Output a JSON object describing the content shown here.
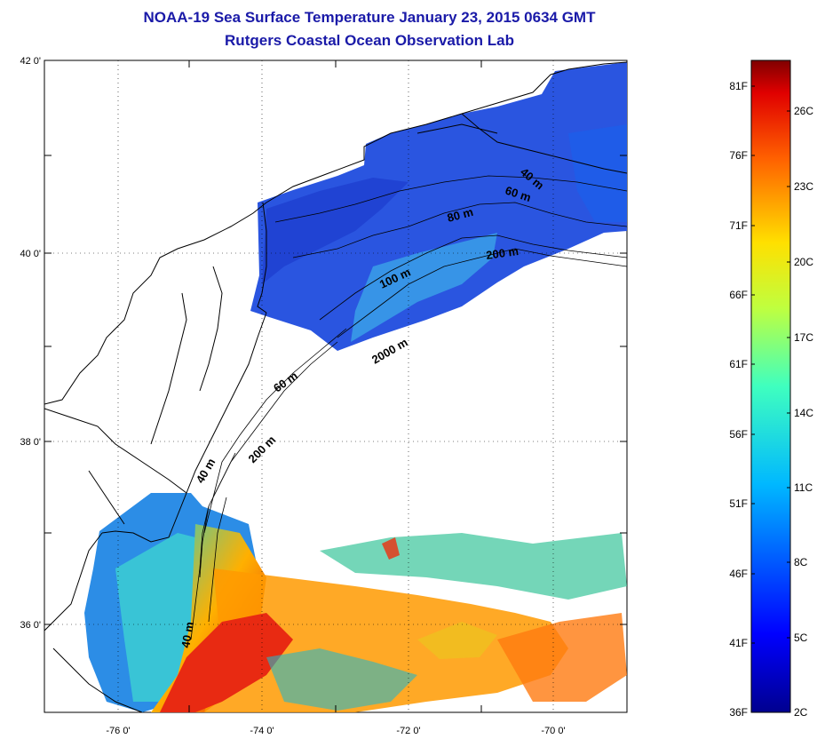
{
  "title": "NOAA-19 Sea Surface Temperature January 23, 2015 0634 GMT",
  "subtitle": "Rutgers Coastal Ocean Observation Lab",
  "map": {
    "lat_labels": [
      "42 0'",
      "40 0'",
      "38 0'",
      "36 0'"
    ],
    "lon_labels": [
      "-76 0'",
      "-74 0'",
      "-72 0'",
      "-70 0'"
    ],
    "isobath_labels": [
      "40 m",
      "60 m",
      "80 m",
      "200 m",
      "100 m",
      "2000 m",
      "60 m",
      "200 m",
      "40 m",
      "40 m"
    ],
    "colors": {
      "cold": "#1f3fd8",
      "mid": "#19c6c8",
      "warm": "#f0d218",
      "hot": "#e01010",
      "land_outline": "#000000"
    }
  },
  "colorbar": {
    "fahrenheit": [
      "81F",
      "76F",
      "71F",
      "66F",
      "61F",
      "56F",
      "51F",
      "46F",
      "41F",
      "36F"
    ],
    "celsius": [
      "26C",
      "23C",
      "20C",
      "17C",
      "14C",
      "11C",
      "8C",
      "5C",
      "2C"
    ]
  }
}
